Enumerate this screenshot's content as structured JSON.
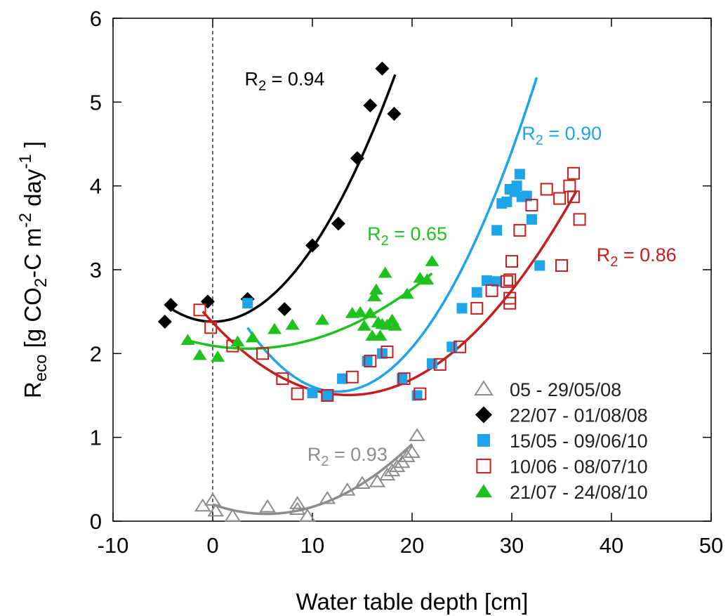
{
  "chart_data": {
    "type": "scatter",
    "xlabel": "Water table depth [cm]",
    "ylabel": {
      "main": "R",
      "sub": "eco",
      "bracket_open": " [g CO",
      "co2_sub": "2",
      "mid": "-C m",
      "exp1": "-2",
      "day": " day",
      "exp2": "-1",
      "bracket_close": " ]"
    },
    "xlim": [
      -10,
      50
    ],
    "ylim": [
      0,
      6
    ],
    "xticks": [
      -10,
      0,
      10,
      20,
      30,
      40,
      50
    ],
    "yticks": [
      0,
      1,
      2,
      3,
      4,
      5,
      6
    ],
    "grid": false,
    "legend_position": "bottom-right",
    "reference_line": {
      "x": 0,
      "style": "dashed"
    },
    "series": [
      {
        "name": "05 - 29/05/08",
        "color": "#8c8c8c",
        "marker": "triangle-open",
        "r2": {
          "prefix": "R",
          "sub": "2",
          "value": " = 0.93",
          "x": 9.5,
          "y": 0.72
        },
        "fit": {
          "x_range": [
            0,
            20
          ],
          "coefficients": [
            0.2,
            -0.042,
            0.0039
          ]
        },
        "points": [
          {
            "x": -1.0,
            "y": 0.18
          },
          {
            "x": 0.0,
            "y": 0.25
          },
          {
            "x": 0.3,
            "y": 0.12
          },
          {
            "x": 2.0,
            "y": 0.06
          },
          {
            "x": 5.5,
            "y": 0.17
          },
          {
            "x": 8.5,
            "y": 0.14
          },
          {
            "x": 8.5,
            "y": 0.21
          },
          {
            "x": 9.5,
            "y": 0.06
          },
          {
            "x": 11.5,
            "y": 0.27
          },
          {
            "x": 13.5,
            "y": 0.37
          },
          {
            "x": 15.0,
            "y": 0.45
          },
          {
            "x": 16.5,
            "y": 0.47
          },
          {
            "x": 17.5,
            "y": 0.55
          },
          {
            "x": 18.0,
            "y": 0.6
          },
          {
            "x": 18.5,
            "y": 0.65
          },
          {
            "x": 19.0,
            "y": 0.7
          },
          {
            "x": 19.5,
            "y": 0.77
          },
          {
            "x": 20.0,
            "y": 0.82
          },
          {
            "x": 20.5,
            "y": 1.02
          }
        ]
      },
      {
        "name": "22/07 - 01/08/08",
        "color": "#000000",
        "marker": "diamond",
        "r2": {
          "prefix": "R",
          "sub": "2",
          "value": " = 0.94",
          "x": 3.2,
          "y": 5.2
        },
        "fit": {
          "x_range": [
            -4,
            18.3
          ],
          "coefficients": [
            2.38,
            0.0,
            0.0088
          ]
        },
        "points": [
          {
            "x": -4.8,
            "y": 2.38
          },
          {
            "x": -4.2,
            "y": 2.58
          },
          {
            "x": -0.5,
            "y": 2.62
          },
          {
            "x": 3.5,
            "y": 2.65
          },
          {
            "x": 7.2,
            "y": 2.53
          },
          {
            "x": 10.0,
            "y": 3.29
          },
          {
            "x": 12.6,
            "y": 3.55
          },
          {
            "x": 14.5,
            "y": 4.33
          },
          {
            "x": 15.8,
            "y": 4.96
          },
          {
            "x": 17.0,
            "y": 5.4
          },
          {
            "x": 18.2,
            "y": 4.86
          }
        ]
      },
      {
        "name": "15/05 - 09/06/10",
        "color": "#1ea4e9",
        "marker": "square",
        "r2": {
          "prefix": "R",
          "sub": "2",
          "value": " = 0.90",
          "x": 31.0,
          "y": 4.55
        },
        "fit": {
          "x_range": [
            3.5,
            32.5
          ],
          "coefficients": [
            3.014,
            -0.2347,
            0.00938
          ]
        },
        "points": [
          {
            "x": 3.5,
            "y": 2.6
          },
          {
            "x": 10.0,
            "y": 1.53
          },
          {
            "x": 11.5,
            "y": 1.5
          },
          {
            "x": 13.0,
            "y": 1.7
          },
          {
            "x": 15.5,
            "y": 1.91
          },
          {
            "x": 17.0,
            "y": 2.0
          },
          {
            "x": 19.0,
            "y": 1.7
          },
          {
            "x": 20.5,
            "y": 1.5
          },
          {
            "x": 22.0,
            "y": 1.88
          },
          {
            "x": 24.0,
            "y": 2.08
          },
          {
            "x": 25.0,
            "y": 2.54
          },
          {
            "x": 26.5,
            "y": 2.73
          },
          {
            "x": 27.5,
            "y": 2.87
          },
          {
            "x": 28.5,
            "y": 2.86
          },
          {
            "x": 28.5,
            "y": 3.47
          },
          {
            "x": 29.0,
            "y": 3.79
          },
          {
            "x": 29.5,
            "y": 3.81
          },
          {
            "x": 29.8,
            "y": 3.96
          },
          {
            "x": 30.3,
            "y": 3.93
          },
          {
            "x": 30.5,
            "y": 4.0
          },
          {
            "x": 30.8,
            "y": 4.14
          },
          {
            "x": 31.0,
            "y": 3.87
          },
          {
            "x": 31.5,
            "y": 3.88
          },
          {
            "x": 32.0,
            "y": 3.6
          },
          {
            "x": 32.8,
            "y": 3.05
          }
        ]
      },
      {
        "name": "10/06 - 08/07/10",
        "color": "#c41e1e",
        "marker": "square-open",
        "r2": {
          "prefix": "R",
          "sub": "2",
          "value": " = 0.86",
          "x": 38.5,
          "y": 3.1
        },
        "fit": {
          "x_range": [
            -1,
            36.5
          ],
          "coefficients": [
            2.37,
            -0.127,
            0.00466
          ]
        },
        "points": [
          {
            "x": -1.3,
            "y": 2.52
          },
          {
            "x": -0.2,
            "y": 2.31
          },
          {
            "x": 2.0,
            "y": 2.09
          },
          {
            "x": 5.0,
            "y": 2.0
          },
          {
            "x": 7.0,
            "y": 1.7
          },
          {
            "x": 8.5,
            "y": 1.52
          },
          {
            "x": 11.5,
            "y": 1.5
          },
          {
            "x": 14.0,
            "y": 1.72
          },
          {
            "x": 15.8,
            "y": 1.91
          },
          {
            "x": 17.5,
            "y": 2.02
          },
          {
            "x": 19.2,
            "y": 1.7
          },
          {
            "x": 20.8,
            "y": 1.52
          },
          {
            "x": 22.8,
            "y": 1.87
          },
          {
            "x": 24.8,
            "y": 2.08
          },
          {
            "x": 26.5,
            "y": 2.54
          },
          {
            "x": 28.0,
            "y": 2.75
          },
          {
            "x": 29.5,
            "y": 2.86
          },
          {
            "x": 29.8,
            "y": 2.6
          },
          {
            "x": 29.8,
            "y": 2.66
          },
          {
            "x": 29.8,
            "y": 2.88
          },
          {
            "x": 30.0,
            "y": 3.1
          },
          {
            "x": 30.8,
            "y": 3.47
          },
          {
            "x": 32.0,
            "y": 3.77
          },
          {
            "x": 33.5,
            "y": 3.96
          },
          {
            "x": 34.8,
            "y": 3.85
          },
          {
            "x": 35.0,
            "y": 3.05
          },
          {
            "x": 35.8,
            "y": 4.0
          },
          {
            "x": 36.2,
            "y": 4.15
          },
          {
            "x": 36.2,
            "y": 3.87
          },
          {
            "x": 36.8,
            "y": 3.6
          }
        ]
      },
      {
        "name": "21/07 - 24/08/10",
        "color": "#1ec21e",
        "marker": "triangle",
        "r2": {
          "prefix": "R",
          "sub": "2",
          "value": " = 0.65",
          "x": 15.5,
          "y": 3.35
        },
        "fit": {
          "x_range": [
            -2.5,
            22
          ],
          "coefficients": [
            2.093,
            -0.0191,
            0.00265
          ]
        },
        "points": [
          {
            "x": -2.5,
            "y": 2.16
          },
          {
            "x": -1.3,
            "y": 1.98
          },
          {
            "x": 0.5,
            "y": 1.96
          },
          {
            "x": 2.5,
            "y": 2.14
          },
          {
            "x": 4.0,
            "y": 2.19
          },
          {
            "x": 6.2,
            "y": 2.29
          },
          {
            "x": 8.0,
            "y": 2.34
          },
          {
            "x": 11.0,
            "y": 2.4
          },
          {
            "x": 14.0,
            "y": 2.48
          },
          {
            "x": 14.8,
            "y": 2.49
          },
          {
            "x": 15.2,
            "y": 2.33
          },
          {
            "x": 15.8,
            "y": 2.48
          },
          {
            "x": 16.0,
            "y": 2.21
          },
          {
            "x": 16.2,
            "y": 2.68
          },
          {
            "x": 16.4,
            "y": 2.76
          },
          {
            "x": 16.6,
            "y": 2.37
          },
          {
            "x": 16.8,
            "y": 2.21
          },
          {
            "x": 17.0,
            "y": 2.35
          },
          {
            "x": 17.3,
            "y": 2.96
          },
          {
            "x": 17.5,
            "y": 2.34
          },
          {
            "x": 18.0,
            "y": 2.4
          },
          {
            "x": 18.3,
            "y": 2.33
          },
          {
            "x": 19.5,
            "y": 2.71
          },
          {
            "x": 20.8,
            "y": 2.9
          },
          {
            "x": 21.5,
            "y": 2.88
          },
          {
            "x": 22.0,
            "y": 3.1
          }
        ]
      }
    ]
  }
}
